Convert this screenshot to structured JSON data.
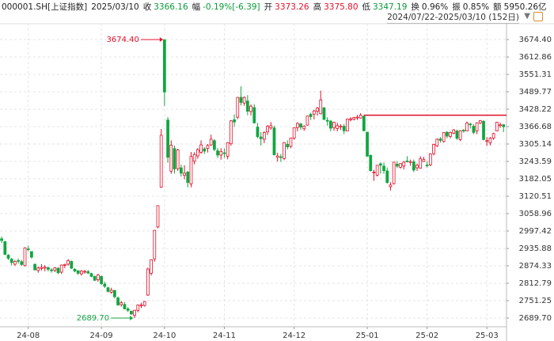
{
  "header": {
    "symbol": "000001.SH[上证指数]",
    "date": "2025/03/10",
    "items": [
      {
        "label": "收",
        "value": "3366.16",
        "color": "#0a9a3a"
      },
      {
        "label": "幅",
        "value": "-0.19%[-6.39]",
        "color": "#0a9a3a"
      },
      {
        "label": "开",
        "value": "3373.26",
        "color": "#e0102a"
      },
      {
        "label": "高",
        "value": "3375.80",
        "color": "#e0102a"
      },
      {
        "label": "低",
        "value": "3347.19",
        "color": "#0a9a3a"
      },
      {
        "label": "换",
        "value": "0.96%",
        "color": "#222222"
      },
      {
        "label": "振",
        "value": "0.85%",
        "color": "#222222"
      },
      {
        "label": "额",
        "value": "5950.26亿",
        "color": "#222222"
      }
    ],
    "range": "2024/07/22-2025/03/10 (152日)"
  },
  "chart_data": {
    "type": "candlestick",
    "up_color": "#e0102a",
    "down_color": "#11a640",
    "categories": [
      null,
      null,
      null,
      null,
      null,
      null,
      null,
      null,
      "24-08",
      null,
      null,
      null,
      null,
      null,
      null,
      null,
      null,
      null,
      null,
      null,
      null,
      null,
      null,
      null,
      null,
      null,
      null,
      null,
      null,
      null,
      "24-09",
      null,
      null,
      null,
      null,
      null,
      null,
      null,
      null,
      null,
      null,
      null,
      null,
      null,
      null,
      null,
      null,
      null,
      null,
      "24-10",
      null,
      null,
      null,
      null,
      null,
      null,
      null,
      null,
      null,
      null,
      null,
      null,
      null,
      null,
      null,
      null,
      null,
      "24-11",
      null,
      null,
      null,
      null,
      null,
      null,
      null,
      null,
      null,
      null,
      null,
      null,
      null,
      null,
      null,
      null,
      null,
      null,
      null,
      null,
      "24-12",
      null,
      null,
      null,
      null,
      null,
      null,
      null,
      null,
      null,
      null,
      null,
      null,
      null,
      null,
      null,
      null,
      null,
      null,
      null,
      null,
      null,
      "25-01",
      null,
      null,
      null,
      null,
      null,
      null,
      null,
      null,
      null,
      null,
      null,
      null,
      null,
      null,
      null,
      null,
      null,
      "25-02",
      null,
      null,
      null,
      null,
      null,
      null,
      null,
      null,
      null,
      null,
      null,
      null,
      null,
      null,
      null,
      null,
      null,
      "25-03",
      null,
      null,
      null,
      null,
      null
    ],
    "open": [
      2970,
      2960,
      2912,
      2898,
      2880,
      2893,
      2889,
      2875,
      2934,
      2925,
      2880,
      2858,
      2865,
      2866,
      2868,
      2860,
      2858,
      2866,
      2852,
      2876,
      2880,
      2890,
      2862,
      2857,
      2846,
      2853,
      2854,
      2847,
      2837,
      2825,
      2837,
      2810,
      2797,
      2781,
      2787,
      2761,
      2737,
      2738,
      2722,
      2714,
      2699,
      2717,
      2735,
      2734,
      2771,
      2848,
      2899,
      3012,
      3153,
      3674,
      3390,
      3209,
      3289,
      3218,
      3221,
      3194,
      3206,
      3164,
      3244,
      3263,
      3276,
      3288,
      3290,
      3302,
      3317,
      3281,
      3266,
      3274,
      3262,
      3306,
      3391,
      3400,
      3470,
      3450,
      3457,
      3420,
      3434,
      3365,
      3330,
      3322,
      3348,
      3362,
      3362,
      3258,
      3260,
      3254,
      3304,
      3297,
      3326,
      3363,
      3376,
      3359,
      3372,
      3410,
      3411,
      3421,
      3412,
      3433,
      3389,
      3386,
      3363,
      3360,
      3366,
      3368,
      3351,
      3393,
      3393,
      3400,
      3397,
      3403,
      3347,
      3265,
      3203,
      3195,
      3235,
      3227,
      3210,
      3154,
      3165,
      3234,
      3223,
      3227,
      3245,
      3240,
      3242,
      3221,
      3220,
      3243,
      3231,
      3231,
      3271,
      3299,
      3323,
      3314,
      3347,
      3332,
      3343,
      3351,
      3321,
      3354,
      3351,
      3376,
      3368,
      3352,
      3380,
      3385,
      3317,
      3310,
      3326,
      3351,
      3371,
      3373.26
    ],
    "high": [
      2978,
      2962,
      2916,
      2902,
      2894,
      2900,
      2895,
      2940,
      2946,
      2925,
      2882,
      2872,
      2880,
      2877,
      2871,
      2866,
      2870,
      2869,
      2879,
      2882,
      2898,
      2893,
      2866,
      2858,
      2860,
      2860,
      2860,
      2850,
      2840,
      2846,
      2840,
      2818,
      2800,
      2797,
      2790,
      2766,
      2750,
      2746,
      2729,
      2716,
      2719,
      2738,
      2744,
      2750,
      2868,
      2898,
      3001,
      3088,
      3358,
      3674.4,
      3400,
      3318,
      3300,
      3288,
      3232,
      3230,
      3210,
      3277,
      3276,
      3291,
      3318,
      3294,
      3305,
      3338,
      3322,
      3291,
      3290,
      3289,
      3312,
      3390,
      3410,
      3471,
      3509,
      3473,
      3478,
      3445,
      3446,
      3380,
      3347,
      3350,
      3372,
      3383,
      3370,
      3274,
      3270,
      3312,
      3318,
      3327,
      3364,
      3382,
      3380,
      3371,
      3405,
      3416,
      3426,
      3436,
      3494,
      3436,
      3400,
      3390,
      3384,
      3380,
      3375,
      3375,
      3395,
      3400,
      3401,
      3408,
      3414,
      3408,
      3348,
      3268,
      3214,
      3231,
      3240,
      3240,
      3222,
      3170,
      3242,
      3245,
      3238,
      3245,
      3262,
      3250,
      3250,
      3236,
      3262,
      3260,
      3245,
      3272,
      3306,
      3325,
      3330,
      3347,
      3350,
      3349,
      3358,
      3356,
      3354,
      3358,
      3385,
      3380,
      3375,
      3382,
      3390,
      3390,
      3330,
      3330,
      3345,
      3383,
      3381,
      3375.8
    ],
    "low": [
      2955,
      2912,
      2895,
      2876,
      2874,
      2882,
      2874,
      2872,
      2926,
      2900,
      2858,
      2850,
      2858,
      2855,
      2855,
      2850,
      2852,
      2845,
      2846,
      2866,
      2875,
      2863,
      2852,
      2842,
      2840,
      2846,
      2845,
      2834,
      2821,
      2818,
      2807,
      2796,
      2780,
      2776,
      2760,
      2733,
      2730,
      2721,
      2711,
      2701,
      2689.7,
      2710,
      2725,
      2730,
      2768,
      2840,
      2889,
      3007,
      3150,
      3440,
      3239,
      3200,
      3201,
      3210,
      3190,
      3180,
      3152,
      3152,
      3233,
      3253,
      3270,
      3270,
      3275,
      3298,
      3280,
      3256,
      3250,
      3257,
      3251,
      3299,
      3366,
      3393,
      3441,
      3440,
      3407,
      3406,
      3377,
      3326,
      3300,
      3308,
      3337,
      3355,
      3265,
      3243,
      3242,
      3248,
      3286,
      3290,
      3320,
      3350,
      3355,
      3352,
      3370,
      3390,
      3392,
      3405,
      3410,
      3390,
      3370,
      3350,
      3352,
      3350,
      3355,
      3340,
      3350,
      3385,
      3388,
      3390,
      3395,
      3350,
      3260,
      3208,
      3175,
      3190,
      3200,
      3200,
      3165,
      3141,
      3162,
      3220,
      3218,
      3215,
      3240,
      3228,
      3206,
      3210,
      3218,
      3242,
      3222,
      3227,
      3265,
      3294,
      3310,
      3310,
      3325,
      3325,
      3340,
      3320,
      3315,
      3345,
      3350,
      3360,
      3340,
      3340,
      3375,
      3318,
      3298,
      3300,
      3320,
      3350,
      3362,
      3347.19
    ],
    "close": [
      2964,
      2915,
      2901,
      2886,
      2890,
      2891,
      2879,
      2938,
      2932,
      2905,
      2860,
      2867,
      2869,
      2870,
      2862,
      2858,
      2867,
      2850,
      2877,
      2879,
      2893,
      2866,
      2856,
      2848,
      2855,
      2855,
      2849,
      2837,
      2823,
      2842,
      2811,
      2802,
      2784,
      2788,
      2765,
      2736,
      2744,
      2722,
      2717,
      2704,
      2717,
      2736,
      2736,
      2748,
      2863,
      2896,
      3000,
      3087,
      3336,
      3489,
      3258,
      3301,
      3217,
      3284,
      3202,
      3202,
      3169,
      3261,
      3268,
      3285,
      3302,
      3280,
      3300,
      3322,
      3286,
      3266,
      3279,
      3272,
      3310,
      3387,
      3383,
      3470,
      3452,
      3470,
      3421,
      3439,
      3380,
      3331,
      3324,
      3346,
      3368,
      3370,
      3267,
      3263,
      3259,
      3310,
      3295,
      3326,
      3363,
      3378,
      3365,
      3368,
      3404,
      3402,
      3422,
      3432,
      3461,
      3392,
      3386,
      3361,
      3382,
      3370,
      3368,
      3352,
      3393,
      3394,
      3399,
      3400,
      3407,
      3352,
      3262,
      3211,
      3206,
      3230,
      3230,
      3211,
      3169,
      3160,
      3241,
      3227,
      3236,
      3241,
      3244,
      3243,
      3213,
      3230,
      3253,
      3250,
      3229,
      3270,
      3304,
      3322,
      3318,
      3346,
      3333,
      3346,
      3355,
      3325,
      3352,
      3351,
      3379,
      3373,
      3346,
      3380,
      3388,
      3321,
      3317,
      3325,
      3342,
      3382,
      3373,
      3366.16
    ],
    "ylim": [
      2658.9,
      3702.4
    ],
    "yticks": [
      {
        "value": 3674.4,
        "label": "3674.40"
      },
      3612.86,
      3551.31,
      3489.77,
      3428.22,
      3366.68,
      3305.14,
      3243.59,
      3182.05,
      3120.51,
      3058.96,
      2997.42,
      2935.88,
      2874.33,
      2812.79,
      2751.25,
      {
        "value": 2689.7,
        "label": "2689.70"
      }
    ],
    "grid": true,
    "annotations": [
      {
        "index": 49,
        "value": 3674.4,
        "label": "3674.40",
        "color": "#e0102a"
      },
      {
        "index": 40,
        "value": 2689.7,
        "label": "2689.70",
        "color": "#11a640"
      }
    ],
    "reference_line": {
      "value": 3407,
      "start_index": 109,
      "color": "#e0102a"
    }
  }
}
